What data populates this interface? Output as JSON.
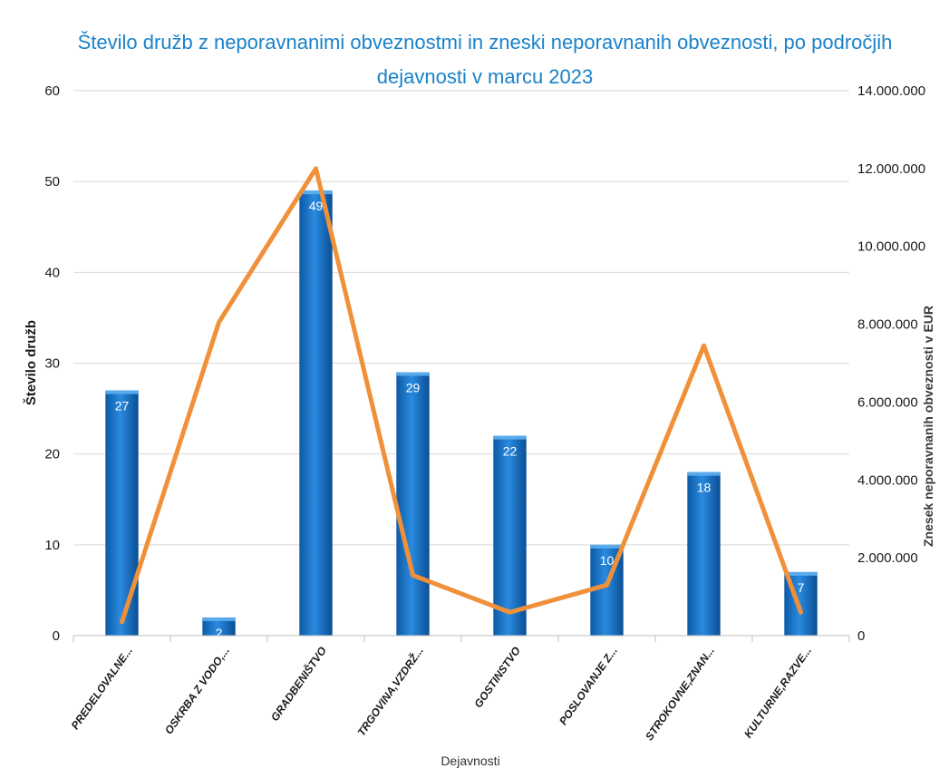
{
  "chart_data": {
    "type": "bar",
    "title_line1": "Število družb z neporavnanimi obveznostmi in zneski neporavnanih obveznosti, po področjih",
    "title_line2": "dejavnosti v marcu 2023",
    "xlabel": "Dejavnosti",
    "ylabel": "Število družb",
    "y2label": "Znesek neporavnanih obveznosti  v  EUR",
    "ylim": [
      0,
      60
    ],
    "y2lim": [
      0,
      14000000
    ],
    "yticks": [
      "0",
      "10",
      "20",
      "30",
      "40",
      "50",
      "60"
    ],
    "y2ticks": [
      "0",
      "2.000.000",
      "4.000.000",
      "6.000.000",
      "8.000.000",
      "10.000.000",
      "12.000.000",
      "14.000.000"
    ],
    "categories": [
      "PREDELOVALNE...",
      "OSKRBA Z VODO,...",
      "GRADBENIŠTVO",
      "TRGOVINA,VZDRŽ...",
      "GOSTINSTVO",
      "POSLOVANJE Z...",
      "STROKOVNE,ZNAN...",
      "KULTURNE,RAZVE..."
    ],
    "series": [
      {
        "values": [
          27,
          2,
          49,
          29,
          22,
          10,
          18,
          7
        ],
        "color": "#1a7ad0",
        "axis": "left",
        "kind": "bar"
      },
      {
        "values": [
          350000,
          8050000,
          12000000,
          1550000,
          600000,
          1300000,
          7450000,
          600000
        ],
        "color": "#f0913a",
        "axis": "right",
        "kind": "line"
      }
    ],
    "grid": true
  }
}
